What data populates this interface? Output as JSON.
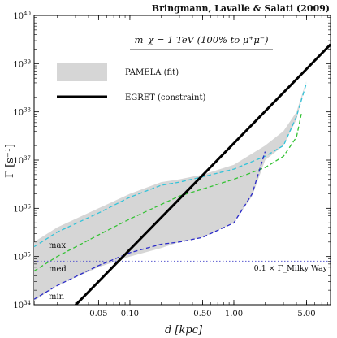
{
  "chart_data": {
    "type": "line",
    "attribution": "Bringmann, Lavalle & Salati (2009)",
    "title": "m_χ = 1 TeV (100% to μ⁺μ⁻)",
    "xlabel": "d [kpc]",
    "ylabel": "Γ [s⁻¹]",
    "x_scale": "log",
    "y_scale": "log",
    "xlim": [
      0.012,
      8.5
    ],
    "ylim": [
      1e+34,
      1e+40
    ],
    "x_ticks": [
      {
        "value": 0.05,
        "label": "0.05"
      },
      {
        "value": 0.1,
        "label": "0.10"
      },
      {
        "value": 0.5,
        "label": "0.50"
      },
      {
        "value": 1.0,
        "label": "1.00"
      },
      {
        "value": 5.0,
        "label": "5.00"
      }
    ],
    "y_ticks": [
      {
        "value": 1e+34,
        "label": "10^34"
      },
      {
        "value": 1e+35,
        "label": "10^35"
      },
      {
        "value": 1e+36,
        "label": "10^36"
      },
      {
        "value": 1e+37,
        "label": "10^37"
      },
      {
        "value": 1e+38,
        "label": "10^38"
      },
      {
        "value": 1e+39,
        "label": "10^39"
      },
      {
        "value": 1e+40,
        "label": "10^40"
      }
    ],
    "legend": {
      "placement": "top-left",
      "entries": [
        {
          "label": "PAMELA (fit)",
          "kind": "band",
          "color": "#d6d6d6"
        },
        {
          "label": "EGRET (constraint)",
          "kind": "line",
          "color": "#000000"
        }
      ]
    },
    "band": {
      "name": "PAMELA (fit)",
      "color": "#d6d6d6",
      "upper": [
        [
          0.012,
          2e+35
        ],
        [
          0.02,
          4e+35
        ],
        [
          0.05,
          1e+36
        ],
        [
          0.1,
          2e+36
        ],
        [
          0.2,
          3.5e+36
        ],
        [
          0.3,
          4e+36
        ],
        [
          0.5,
          5e+36
        ],
        [
          1.0,
          8e+36
        ],
        [
          2.0,
          2e+37
        ],
        [
          3.0,
          4e+37
        ],
        [
          4.0,
          1e+38
        ],
        [
          5.0,
          4.5e+38
        ]
      ],
      "lower": [
        [
          5.0,
          4.5e+38
        ],
        [
          4.0,
          7e+37
        ],
        [
          3.0,
          2e+37
        ],
        [
          2.0,
          1e+37
        ],
        [
          1.5,
          1.8e+36
        ],
        [
          1.0,
          5e+35
        ],
        [
          0.5,
          2.5e+35
        ],
        [
          0.3,
          2e+35
        ],
        [
          0.2,
          1.5e+35
        ],
        [
          0.1,
          1e+35
        ],
        [
          0.05,
          6e+34
        ],
        [
          0.02,
          2.5e+34
        ],
        [
          0.012,
          1.2e+34
        ]
      ]
    },
    "series": [
      {
        "name": "max",
        "color": "#33c3d9",
        "dash": true,
        "x": [
          0.012,
          0.02,
          0.05,
          0.1,
          0.2,
          0.3,
          0.5,
          1.0,
          2.0,
          3.0,
          4.0,
          5.0
        ],
        "y": [
          1.6e+35,
          3.2e+35,
          8e+35,
          1.7e+36,
          3e+36,
          3.5e+36,
          4.5e+36,
          6.5e+36,
          1.2e+37,
          2e+37,
          8e+37,
          4e+38
        ]
      },
      {
        "name": "med",
        "color": "#35c235",
        "dash": true,
        "x": [
          0.012,
          0.02,
          0.05,
          0.1,
          0.2,
          0.3,
          0.5,
          1.0,
          2.0,
          3.0,
          4.0,
          4.5
        ],
        "y": [
          5e+34,
          1e+35,
          2.8e+35,
          6e+35,
          1.2e+36,
          1.8e+36,
          2.5e+36,
          4e+36,
          7e+36,
          1.2e+37,
          3e+37,
          1e+38
        ]
      },
      {
        "name": "min",
        "color": "#2b2bc8",
        "dash": true,
        "x": [
          0.012,
          0.02,
          0.05,
          0.1,
          0.2,
          0.3,
          0.5,
          1.0,
          1.5,
          2.0
        ],
        "y": [
          1.3e+34,
          2.5e+34,
          6.5e+34,
          1.2e+35,
          1.8e+35,
          2e+35,
          2.5e+35,
          5e+35,
          2e+36,
          1.5e+37
        ]
      },
      {
        "name": "EGRET (constraint)",
        "color": "#000000",
        "dash": false,
        "x": [
          0.012,
          8.5
        ],
        "y": [
          1.3e+33,
          2.5e+39
        ]
      }
    ],
    "reference_line": {
      "y": 8e+34,
      "label": "0.1 × Γ_Milky Way",
      "color": "#5a5ad0"
    },
    "grid": false
  }
}
